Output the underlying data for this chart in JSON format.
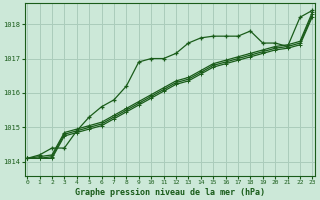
{
  "title": "Graphe pression niveau de la mer (hPa)",
  "background_color": "#cce8d8",
  "grid_color": "#aaccbb",
  "line_color": "#1a5c1a",
  "x_min": 0,
  "x_max": 23,
  "y_min": 1013.6,
  "y_max": 1018.6,
  "y_ticks": [
    1014,
    1015,
    1016,
    1017,
    1018
  ],
  "x_ticks": [
    0,
    1,
    2,
    3,
    4,
    5,
    6,
    7,
    8,
    9,
    10,
    11,
    12,
    13,
    14,
    15,
    16,
    17,
    18,
    19,
    20,
    21,
    22,
    23
  ],
  "series1_sharp": [
    [
      0,
      1014.1
    ],
    [
      1,
      1014.2
    ],
    [
      2,
      1014.4
    ],
    [
      3,
      1014.4
    ],
    [
      4,
      1014.9
    ],
    [
      5,
      1015.3
    ],
    [
      6,
      1015.6
    ],
    [
      7,
      1015.8
    ],
    [
      8,
      1016.2
    ],
    [
      9,
      1016.9
    ],
    [
      10,
      1017.0
    ],
    [
      11,
      1017.0
    ],
    [
      12,
      1017.15
    ],
    [
      13,
      1017.45
    ],
    [
      14,
      1017.6
    ],
    [
      15,
      1017.65
    ],
    [
      16,
      1017.65
    ],
    [
      17,
      1017.65
    ],
    [
      18,
      1017.8
    ],
    [
      19,
      1017.45
    ],
    [
      20,
      1017.45
    ],
    [
      21,
      1017.35
    ],
    [
      22,
      1018.2
    ],
    [
      23,
      1018.4
    ]
  ],
  "series2_linear": [
    [
      0,
      1014.1
    ],
    [
      1,
      1014.15
    ],
    [
      2,
      1014.2
    ],
    [
      3,
      1014.85
    ],
    [
      4,
      1014.95
    ],
    [
      5,
      1015.05
    ],
    [
      6,
      1015.15
    ],
    [
      7,
      1015.35
    ],
    [
      8,
      1015.55
    ],
    [
      9,
      1015.75
    ],
    [
      10,
      1015.95
    ],
    [
      11,
      1016.15
    ],
    [
      12,
      1016.35
    ],
    [
      13,
      1016.45
    ],
    [
      14,
      1016.65
    ],
    [
      15,
      1016.85
    ],
    [
      16,
      1016.95
    ],
    [
      17,
      1017.05
    ],
    [
      18,
      1017.15
    ],
    [
      19,
      1017.25
    ],
    [
      20,
      1017.35
    ],
    [
      21,
      1017.4
    ],
    [
      22,
      1017.5
    ],
    [
      23,
      1018.35
    ]
  ],
  "series3_linear": [
    [
      0,
      1014.1
    ],
    [
      1,
      1014.1
    ],
    [
      2,
      1014.15
    ],
    [
      3,
      1014.8
    ],
    [
      4,
      1014.9
    ],
    [
      5,
      1015.0
    ],
    [
      6,
      1015.1
    ],
    [
      7,
      1015.3
    ],
    [
      8,
      1015.5
    ],
    [
      9,
      1015.7
    ],
    [
      10,
      1015.9
    ],
    [
      11,
      1016.1
    ],
    [
      12,
      1016.3
    ],
    [
      13,
      1016.4
    ],
    [
      14,
      1016.6
    ],
    [
      15,
      1016.8
    ],
    [
      16,
      1016.9
    ],
    [
      17,
      1017.0
    ],
    [
      18,
      1017.1
    ],
    [
      19,
      1017.2
    ],
    [
      20,
      1017.3
    ],
    [
      21,
      1017.35
    ],
    [
      22,
      1017.45
    ],
    [
      23,
      1018.28
    ]
  ],
  "series4_linear": [
    [
      0,
      1014.1
    ],
    [
      1,
      1014.1
    ],
    [
      2,
      1014.1
    ],
    [
      3,
      1014.75
    ],
    [
      4,
      1014.85
    ],
    [
      5,
      1014.95
    ],
    [
      6,
      1015.05
    ],
    [
      7,
      1015.25
    ],
    [
      8,
      1015.45
    ],
    [
      9,
      1015.65
    ],
    [
      10,
      1015.85
    ],
    [
      11,
      1016.05
    ],
    [
      12,
      1016.25
    ],
    [
      13,
      1016.35
    ],
    [
      14,
      1016.55
    ],
    [
      15,
      1016.75
    ],
    [
      16,
      1016.85
    ],
    [
      17,
      1016.95
    ],
    [
      18,
      1017.05
    ],
    [
      19,
      1017.15
    ],
    [
      20,
      1017.25
    ],
    [
      21,
      1017.3
    ],
    [
      22,
      1017.4
    ],
    [
      23,
      1018.22
    ]
  ]
}
